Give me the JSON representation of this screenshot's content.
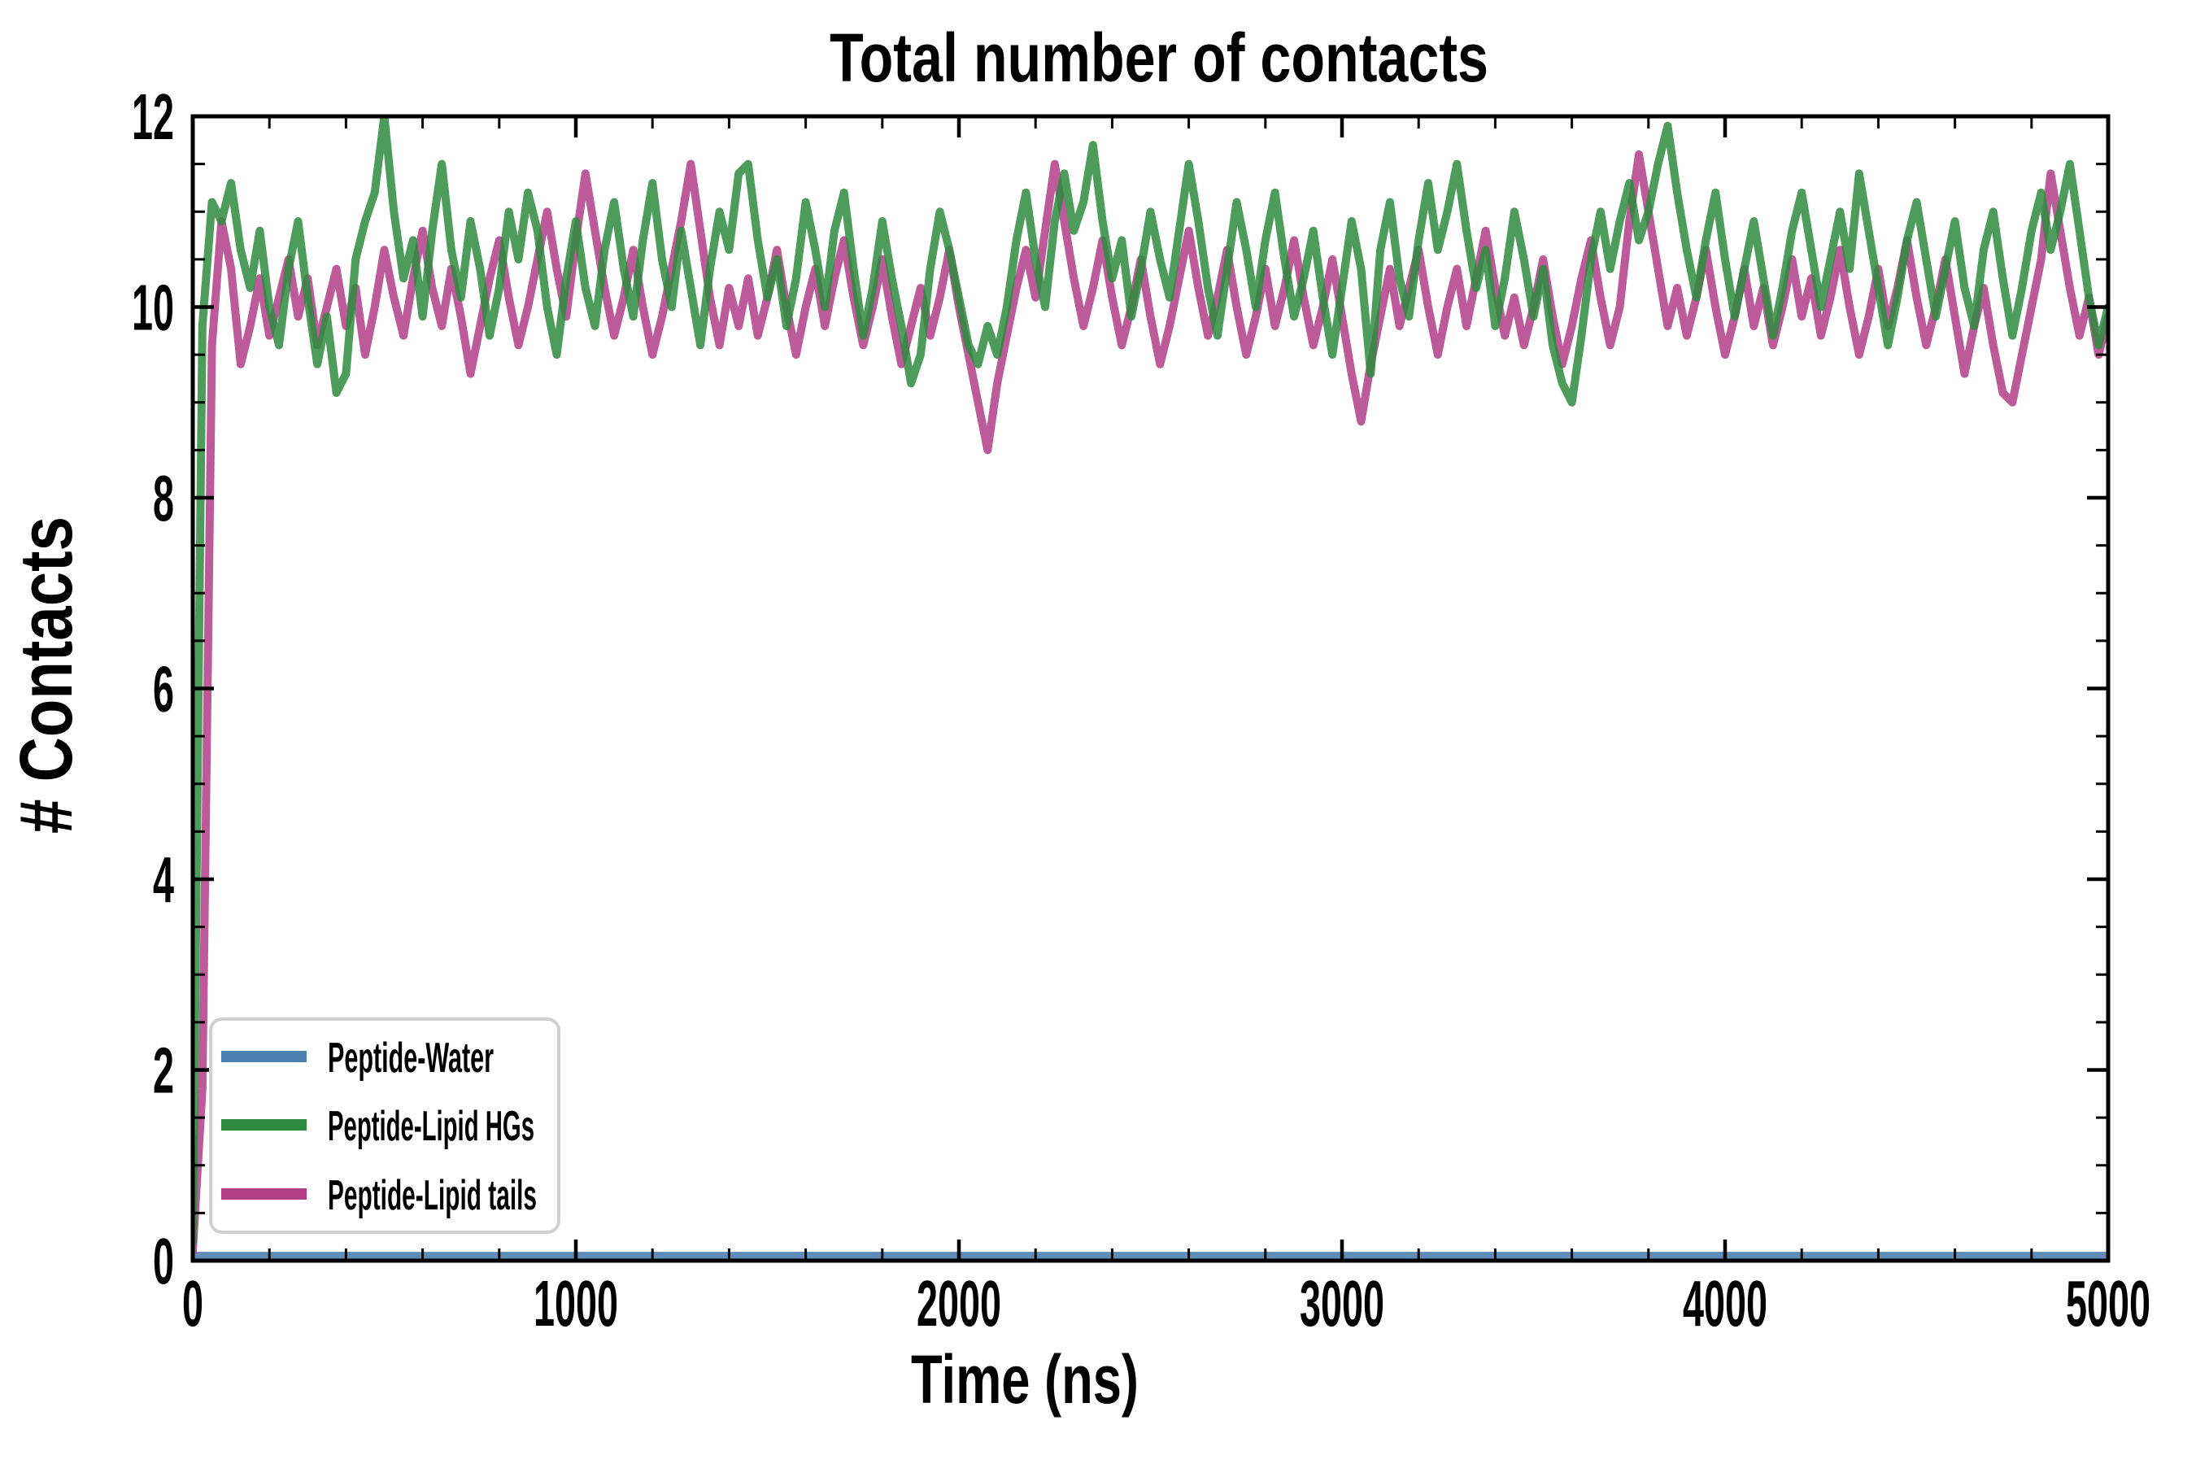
{
  "chart_data": {
    "type": "line",
    "title": "Total number of contacts",
    "xlabel": "Time (ns)",
    "ylabel": "# Contacts",
    "xlim": [
      0,
      5000
    ],
    "ylim": [
      0,
      12
    ],
    "xticks_major": [
      0,
      1000,
      2000,
      3000,
      4000,
      5000
    ],
    "xtick_minor_step": 200,
    "yticks_major": [
      0,
      2,
      4,
      6,
      8,
      10,
      12
    ],
    "ytick_minor_step": 0.5,
    "grid": false,
    "legend_position": "lower-left",
    "axis_color": "#000000",
    "sample_time_ns": {
      "start": 0,
      "step": 25,
      "count": 201
    },
    "draw_order": [
      "Peptide-Water",
      "Peptide-Lipid tails",
      "Peptide-Lipid HGs"
    ],
    "series": [
      {
        "name": "Peptide-Water",
        "color": "#4e81b3",
        "opacity": 0.9,
        "line_width": 10,
        "x": [
          0,
          5000
        ],
        "y": [
          0.05,
          0.05
        ]
      },
      {
        "name": "Peptide-Lipid HGs",
        "color": "#2e8b3e",
        "opacity": 0.85,
        "line_width": 10,
        "y": [
          0.2,
          9.8,
          11.1,
          10.9,
          11.3,
          10.6,
          10.2,
          10.8,
          10.0,
          9.6,
          10.4,
          10.9,
          10.1,
          9.4,
          9.9,
          9.1,
          9.3,
          10.5,
          10.9,
          11.2,
          12.0,
          11.0,
          10.3,
          10.7,
          9.9,
          10.8,
          11.5,
          10.6,
          10.1,
          10.9,
          10.4,
          9.7,
          10.2,
          11.0,
          10.5,
          11.2,
          10.8,
          10.0,
          9.5,
          10.3,
          10.9,
          10.2,
          9.8,
          10.6,
          11.1,
          10.4,
          9.9,
          10.7,
          11.3,
          10.5,
          10.0,
          10.8,
          10.2,
          9.6,
          10.4,
          11.0,
          10.6,
          11.4,
          11.5,
          10.7,
          10.1,
          10.5,
          9.8,
          10.3,
          11.1,
          10.6,
          10.0,
          10.8,
          11.2,
          10.4,
          9.7,
          10.2,
          10.9,
          10.3,
          9.8,
          9.2,
          9.5,
          10.4,
          11.0,
          10.6,
          10.1,
          9.6,
          9.4,
          9.8,
          9.5,
          10.0,
          10.7,
          11.2,
          10.5,
          10.0,
          10.9,
          11.4,
          10.8,
          11.1,
          11.7,
          10.9,
          10.3,
          10.7,
          9.9,
          10.4,
          11.0,
          10.5,
          10.1,
          10.8,
          11.5,
          10.9,
          10.2,
          9.7,
          10.4,
          11.1,
          10.6,
          10.0,
          10.7,
          11.2,
          10.5,
          9.9,
          10.3,
          10.8,
          10.1,
          9.5,
          10.2,
          10.9,
          10.4,
          9.3,
          10.6,
          11.1,
          10.3,
          9.9,
          10.7,
          11.3,
          10.6,
          11.0,
          11.5,
          10.8,
          10.2,
          10.6,
          9.8,
          10.3,
          11.0,
          10.5,
          9.9,
          10.4,
          9.6,
          9.2,
          9.0,
          9.7,
          10.5,
          11.0,
          10.4,
          10.9,
          11.3,
          10.7,
          11.0,
          11.5,
          11.9,
          11.2,
          10.6,
          10.1,
          10.7,
          11.2,
          10.5,
          9.9,
          10.4,
          10.9,
          10.3,
          9.7,
          10.2,
          10.8,
          11.2,
          10.6,
          10.0,
          10.5,
          11.0,
          10.4,
          11.4,
          10.8,
          10.2,
          9.6,
          10.1,
          10.7,
          11.1,
          10.5,
          9.9,
          10.4,
          10.9,
          10.2,
          9.8,
          10.6,
          11.0,
          10.3,
          9.7,
          10.2,
          10.8,
          11.2,
          10.6,
          11.0,
          11.5,
          10.8,
          10.1,
          9.6,
          10.0
        ]
      },
      {
        "name": "Peptide-Lipid tails",
        "color": "#b23e88",
        "opacity": 0.85,
        "line_width": 10,
        "y": [
          0.1,
          1.8,
          9.6,
          10.9,
          10.4,
          9.4,
          9.8,
          10.3,
          9.7,
          10.1,
          10.5,
          9.9,
          10.3,
          9.6,
          10.0,
          10.4,
          9.8,
          10.2,
          9.5,
          10.0,
          10.6,
          10.1,
          9.7,
          10.3,
          10.8,
          10.2,
          9.8,
          10.4,
          9.9,
          9.3,
          9.8,
          10.3,
          10.7,
          10.1,
          9.6,
          10.0,
          10.5,
          11.0,
          10.4,
          9.9,
          10.7,
          11.4,
          10.8,
          10.2,
          9.7,
          10.1,
          10.6,
          10.0,
          9.5,
          9.9,
          10.4,
          10.9,
          11.5,
          10.8,
          10.1,
          9.6,
          10.2,
          9.8,
          10.3,
          9.7,
          10.1,
          10.6,
          10.0,
          9.5,
          10.0,
          10.4,
          9.8,
          10.3,
          10.7,
          10.1,
          9.6,
          10.0,
          10.5,
          9.9,
          9.4,
          9.8,
          10.2,
          9.7,
          10.1,
          10.6,
          10.0,
          9.5,
          9.0,
          8.5,
          9.2,
          9.7,
          10.2,
          10.6,
          10.1,
          10.8,
          11.5,
          10.9,
          10.3,
          9.8,
          10.2,
          10.7,
          10.1,
          9.6,
          10.0,
          10.5,
          9.9,
          9.4,
          9.8,
          10.3,
          10.8,
          10.2,
          9.7,
          10.1,
          10.6,
          10.0,
          9.5,
          9.9,
          10.4,
          9.8,
          10.2,
          10.7,
          10.1,
          9.6,
          10.0,
          10.5,
          9.9,
          9.3,
          8.8,
          9.4,
          9.9,
          10.4,
          9.8,
          10.2,
          10.6,
          10.0,
          9.5,
          10.0,
          10.4,
          9.8,
          10.3,
          10.8,
          10.2,
          9.7,
          10.1,
          9.6,
          10.0,
          10.5,
          9.9,
          9.4,
          9.8,
          10.3,
          10.7,
          10.1,
          9.6,
          10.0,
          10.9,
          11.6,
          11.0,
          10.4,
          9.8,
          10.2,
          9.7,
          10.1,
          10.6,
          10.0,
          9.5,
          9.9,
          10.4,
          9.8,
          10.2,
          9.6,
          10.0,
          10.5,
          9.9,
          10.3,
          9.7,
          10.1,
          10.6,
          10.0,
          9.5,
          9.9,
          10.4,
          9.8,
          10.2,
          10.7,
          10.1,
          9.6,
          10.0,
          10.5,
          9.9,
          9.3,
          9.8,
          10.2,
          9.6,
          9.1,
          9.0,
          9.5,
          10.0,
          10.5,
          11.4,
          10.8,
          10.2,
          9.7,
          10.1,
          9.5,
          9.9
        ]
      }
    ],
    "legend": {
      "entries": [
        "Peptide-Water",
        "Peptide-Lipid HGs",
        "Peptide-Lipid tails"
      ],
      "border_color": "#d0d0d0",
      "background": "#ffffff"
    }
  }
}
